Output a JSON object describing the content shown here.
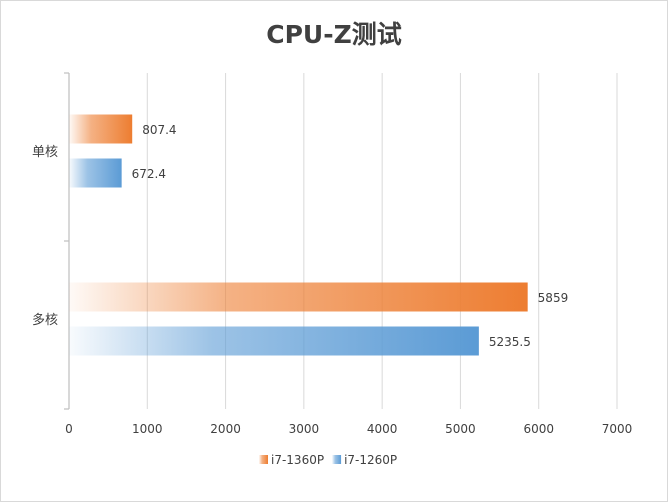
{
  "chart_data": {
    "type": "bar",
    "orientation": "horizontal",
    "title": "CPU-Z测试",
    "categories": [
      "单核",
      "多核"
    ],
    "series": [
      {
        "name": "i7-1360P",
        "values": [
          807.4,
          5859
        ],
        "color": "#ED7D31"
      },
      {
        "name": "i7-1260P",
        "values": [
          672.4,
          5235.5
        ],
        "color": "#5B9BD5"
      }
    ],
    "data_labels": [
      [
        "807.4",
        "5859"
      ],
      [
        "672.4",
        "5235.5"
      ]
    ],
    "xlim": [
      0,
      7000
    ],
    "xticks": [
      "0",
      "1000",
      "2000",
      "3000",
      "4000",
      "5000",
      "6000",
      "7000"
    ],
    "grid": true,
    "legend_position": "bottom"
  }
}
